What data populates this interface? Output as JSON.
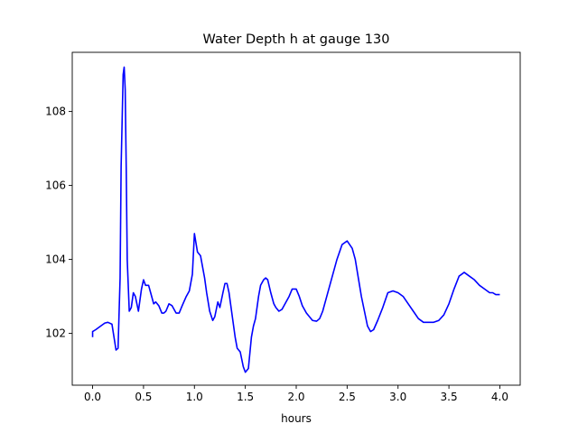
{
  "chart_data": {
    "type": "line",
    "title": "Water Depth h at gauge 130",
    "xlabel": "hours",
    "ylabel": "",
    "xlim": [
      -0.2,
      4.2
    ],
    "ylim": [
      100.6,
      109.6
    ],
    "grid": false,
    "xticks": [
      0.0,
      0.5,
      1.0,
      1.5,
      2.0,
      2.5,
      3.0,
      3.5,
      4.0
    ],
    "xtick_labels": [
      "0.0",
      "0.5",
      "1.0",
      "1.5",
      "2.0",
      "2.5",
      "3.0",
      "3.5",
      "4.0"
    ],
    "yticks": [
      102,
      104,
      106,
      108
    ],
    "ytick_labels": [
      "102",
      "104",
      "106",
      "108"
    ],
    "series": [
      {
        "color": "#0000ff",
        "x": [
          0.0,
          0.0,
          0.03,
          0.08,
          0.12,
          0.15,
          0.19,
          0.21,
          0.23,
          0.25,
          0.27,
          0.28,
          0.3,
          0.31,
          0.32,
          0.33,
          0.34,
          0.36,
          0.38,
          0.4,
          0.42,
          0.45,
          0.48,
          0.5,
          0.52,
          0.55,
          0.57,
          0.6,
          0.62,
          0.65,
          0.68,
          0.7,
          0.72,
          0.75,
          0.78,
          0.82,
          0.85,
          0.88,
          0.92,
          0.95,
          0.98,
          1.0,
          1.03,
          1.06,
          1.08,
          1.1,
          1.12,
          1.15,
          1.18,
          1.2,
          1.23,
          1.25,
          1.28,
          1.3,
          1.32,
          1.34,
          1.36,
          1.38,
          1.4,
          1.42,
          1.45,
          1.48,
          1.5,
          1.53,
          1.56,
          1.58,
          1.6,
          1.63,
          1.65,
          1.68,
          1.7,
          1.72,
          1.75,
          1.78,
          1.8,
          1.83,
          1.86,
          1.9,
          1.93,
          1.96,
          2.0,
          2.03,
          2.06,
          2.1,
          2.13,
          2.16,
          2.2,
          2.23,
          2.26,
          2.3,
          2.35,
          2.4,
          2.45,
          2.5,
          2.55,
          2.58,
          2.61,
          2.64,
          2.67,
          2.7,
          2.73,
          2.76,
          2.8,
          2.85,
          2.9,
          2.95,
          3.0,
          3.05,
          3.1,
          3.15,
          3.2,
          3.25,
          3.3,
          3.35,
          3.4,
          3.45,
          3.5,
          3.55,
          3.6,
          3.65,
          3.7,
          3.75,
          3.8,
          3.85,
          3.9,
          3.93,
          3.96,
          4.0
        ],
        "y": [
          101.9,
          102.05,
          102.1,
          102.2,
          102.28,
          102.3,
          102.25,
          101.9,
          101.55,
          101.6,
          103.5,
          106.5,
          109.0,
          109.2,
          108.6,
          106.5,
          104.0,
          102.6,
          102.7,
          103.1,
          103.0,
          102.6,
          103.2,
          103.45,
          103.3,
          103.3,
          103.1,
          102.8,
          102.85,
          102.75,
          102.55,
          102.55,
          102.6,
          102.8,
          102.75,
          102.55,
          102.55,
          102.75,
          103.0,
          103.15,
          103.6,
          104.7,
          104.2,
          104.1,
          103.8,
          103.5,
          103.1,
          102.6,
          102.35,
          102.45,
          102.85,
          102.7,
          103.1,
          103.35,
          103.35,
          103.1,
          102.7,
          102.3,
          101.9,
          101.6,
          101.5,
          101.1,
          100.95,
          101.05,
          101.9,
          102.2,
          102.4,
          103.0,
          103.3,
          103.45,
          103.5,
          103.45,
          103.1,
          102.8,
          102.7,
          102.6,
          102.65,
          102.85,
          103.0,
          103.2,
          103.2,
          103.0,
          102.75,
          102.55,
          102.45,
          102.35,
          102.33,
          102.4,
          102.6,
          103.0,
          103.5,
          104.0,
          104.4,
          104.5,
          104.3,
          104.0,
          103.5,
          103.0,
          102.6,
          102.2,
          102.05,
          102.1,
          102.35,
          102.7,
          103.1,
          103.15,
          103.1,
          103.0,
          102.8,
          102.6,
          102.4,
          102.3,
          102.3,
          102.3,
          102.35,
          102.5,
          102.8,
          103.2,
          103.55,
          103.65,
          103.55,
          103.45,
          103.3,
          103.2,
          103.1,
          103.1,
          103.05,
          103.05
        ]
      }
    ]
  }
}
